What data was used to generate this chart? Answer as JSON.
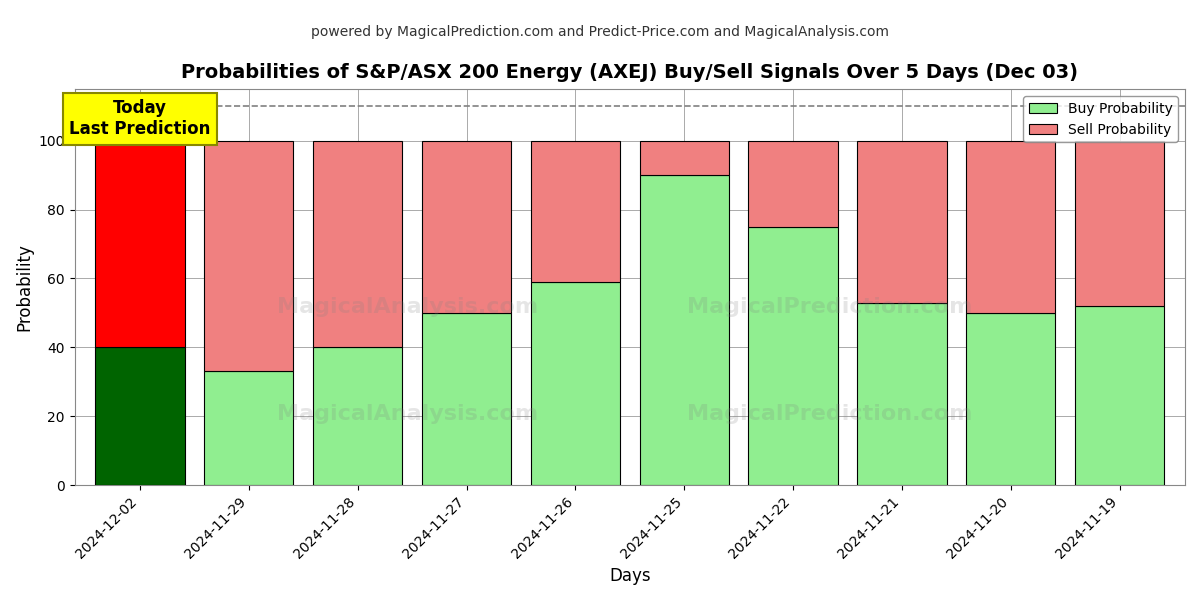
{
  "title": "Probabilities of S&P/ASX 200 Energy (AXEJ) Buy/Sell Signals Over 5 Days (Dec 03)",
  "subtitle": "powered by MagicalPrediction.com and Predict-Price.com and MagicalAnalysis.com",
  "xlabel": "Days",
  "ylabel": "Probability",
  "categories": [
    "2024-12-02",
    "2024-11-29",
    "2024-11-28",
    "2024-11-27",
    "2024-11-26",
    "2024-11-25",
    "2024-11-22",
    "2024-11-21",
    "2024-11-20",
    "2024-11-19"
  ],
  "buy_values": [
    40,
    33,
    40,
    50,
    59,
    90,
    75,
    53,
    50,
    52
  ],
  "sell_values": [
    60,
    67,
    60,
    50,
    41,
    10,
    25,
    47,
    50,
    48
  ],
  "buy_colors": [
    "#006400",
    "#90EE90",
    "#90EE90",
    "#90EE90",
    "#90EE90",
    "#90EE90",
    "#90EE90",
    "#90EE90",
    "#90EE90",
    "#90EE90"
  ],
  "sell_colors": [
    "#FF0000",
    "#F08080",
    "#F08080",
    "#F08080",
    "#F08080",
    "#F08080",
    "#F08080",
    "#F08080",
    "#F08080",
    "#F08080"
  ],
  "today_box_color": "#FFFF00",
  "today_label": "Today\nLast Prediction",
  "legend_buy_color": "#90EE90",
  "legend_sell_color": "#F08080",
  "ylim": [
    0,
    115
  ],
  "dashed_line_y": 110,
  "watermark_texts": [
    "MagicalAnalysis.com",
    "MagicalPrediction.com"
  ],
  "bar_edge_color": "#000000",
  "background_color": "#ffffff",
  "grid_color": "#aaaaaa",
  "bar_width": 0.82
}
